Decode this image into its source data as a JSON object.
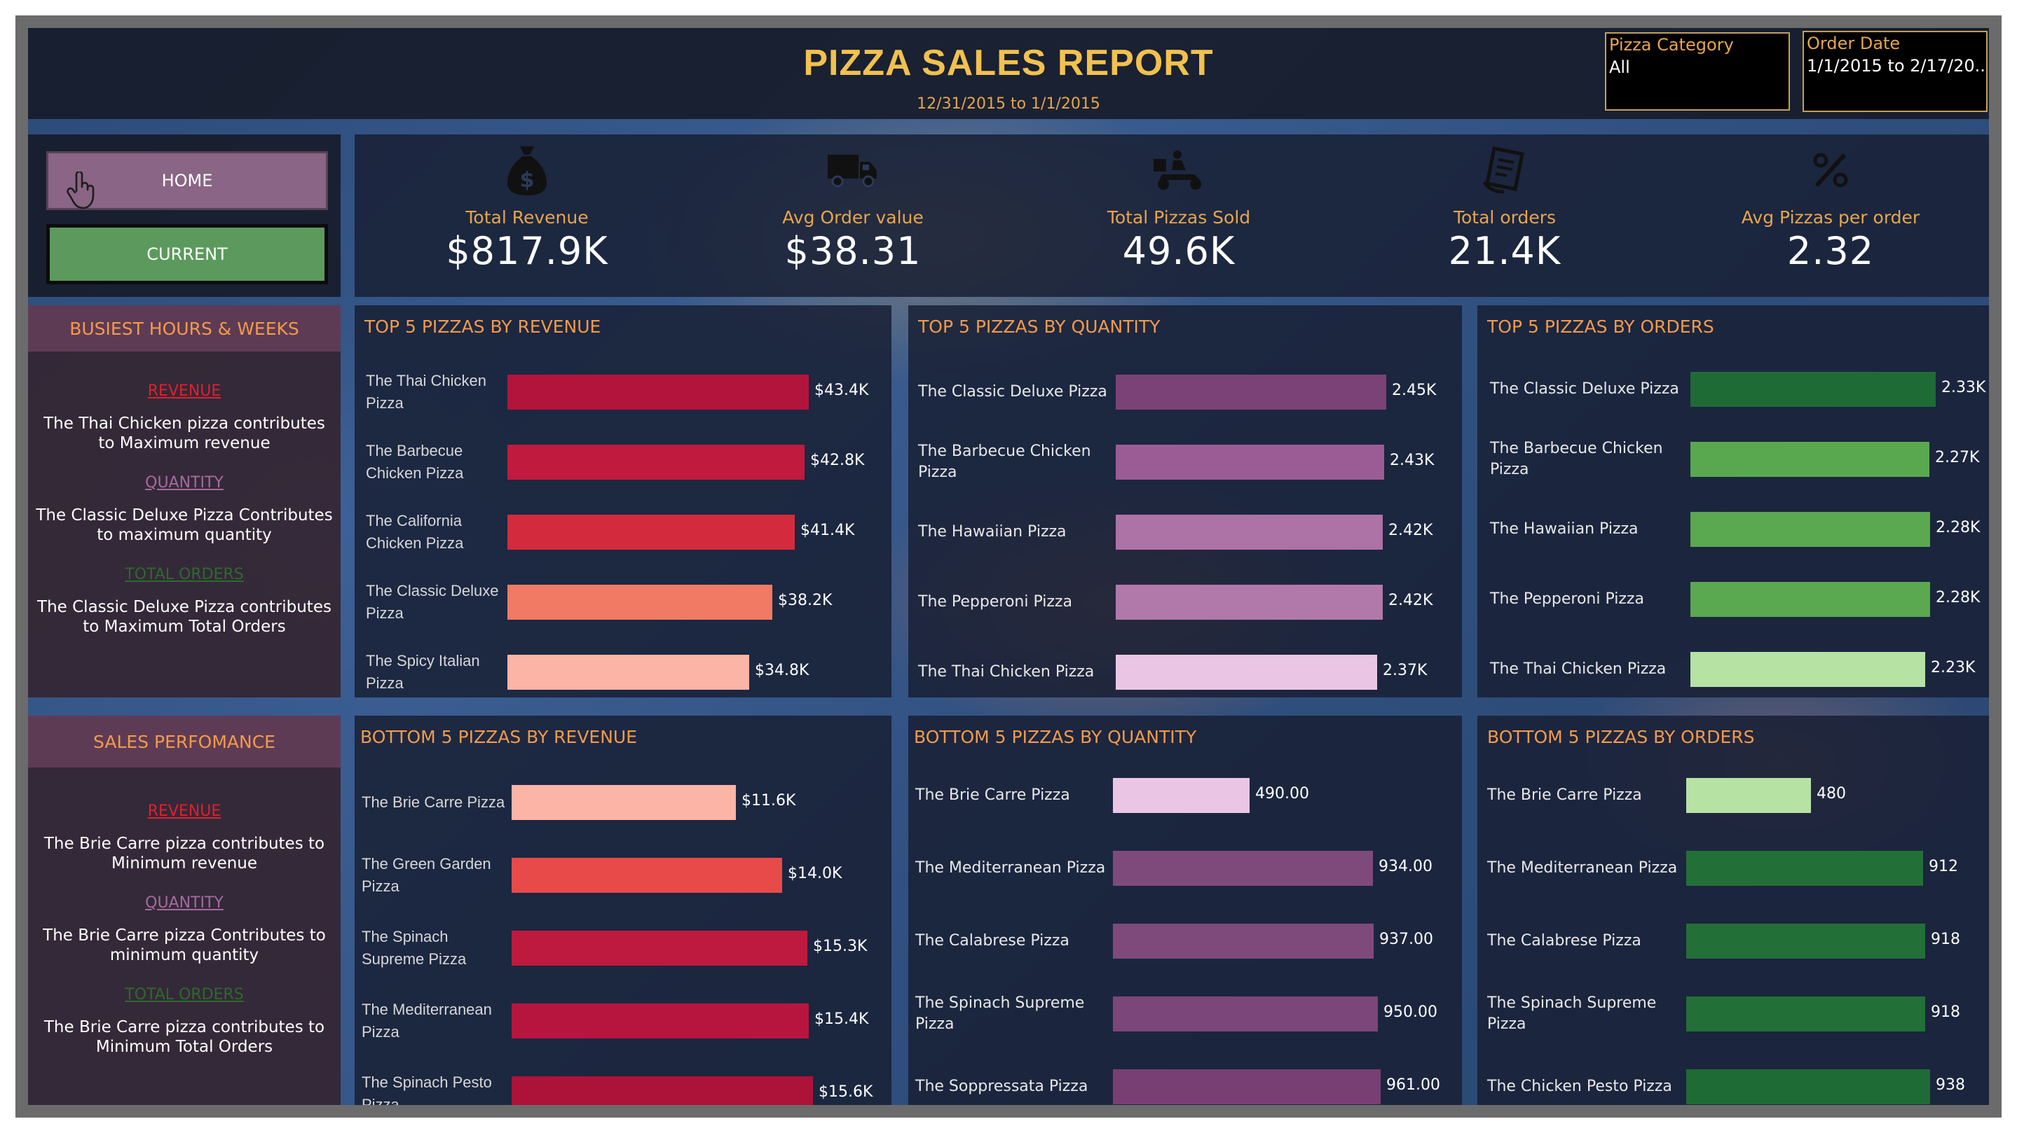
{
  "header": {
    "title": "PIZZA SALES REPORT",
    "subtitle": "12/31/2015 to 1/1/2015",
    "filter_category_label": "Pizza Category",
    "filter_category_value": "All",
    "filter_date_label": "Order Date",
    "filter_date_value": "1/1/2015 to 2/17/20.."
  },
  "nav": {
    "home_label": "HOME",
    "current_label": "CURRENT"
  },
  "kpis": [
    {
      "icon": "money-bag-icon",
      "label": "Total Revenue",
      "value": "$817.9K"
    },
    {
      "icon": "delivery-truck-icon",
      "label": "Avg Order value",
      "value": "$38.31"
    },
    {
      "icon": "delivery-scooter-icon",
      "label": "Total Pizzas Sold",
      "value": "49.6K"
    },
    {
      "icon": "receipt-icon",
      "label": "Total orders",
      "value": "21.4K"
    },
    {
      "icon": "percent-icon",
      "label": "Avg Pizzas per order",
      "value": "2.32"
    }
  ],
  "busiest": {
    "title": "BUSIEST HOURS & WEEKS",
    "items": [
      {
        "tag": "REVENUE",
        "text": "The Thai Chicken pizza contributes to Maximum revenue"
      },
      {
        "tag": "QUANTITY",
        "text": "The Classic Deluxe Pizza Contributes to maximum quantity"
      },
      {
        "tag": "TOTAL ORDERS",
        "text": "The Classic Deluxe Pizza contributes to Maximum Total Orders"
      }
    ]
  },
  "performance": {
    "title": "SALES PERFOMANCE",
    "items": [
      {
        "tag": "REVENUE",
        "text": "The Brie Carre pizza contributes to Minimum revenue"
      },
      {
        "tag": "QUANTITY",
        "text": "The Brie Carre pizza  Contributes to minimum quantity"
      },
      {
        "tag": "TOTAL ORDERS",
        "text": "The Brie Carre pizza  contributes to Minimum Total Orders"
      }
    ]
  },
  "colors": {
    "tag_revenue": "#e0202e",
    "tag_quantity": "#a66aa0",
    "tag_orders": "#2c6a2c"
  },
  "chart_data": [
    {
      "type": "bar",
      "title": "TOP 5 PIZZAS BY REVENUE",
      "categories": [
        "The Thai Chicken Pizza",
        "The Barbecue Chicken Pizza",
        "The California Chicken Pizza",
        "The Classic Deluxe Pizza",
        "The Spicy Italian Pizza"
      ],
      "values": [
        43.4,
        42.8,
        41.4,
        38.2,
        34.8
      ],
      "value_labels": [
        "$43.4K",
        "$42.8K",
        "$41.4K",
        "$38.2K",
        "$34.8K"
      ],
      "colors": [
        "#b3143c",
        "#c11a3f",
        "#d32b3d",
        "#f07a64",
        "#fbb4a6"
      ]
    },
    {
      "type": "bar",
      "title": "TOP 5 PIZZAS BY QUANTITY",
      "categories": [
        "The Classic Deluxe Pizza",
        "The Barbecue Chicken Pizza",
        "The Hawaiian Pizza",
        "The Pepperoni Pizza",
        "The Thai Chicken Pizza"
      ],
      "values": [
        2.45,
        2.43,
        2.42,
        2.42,
        2.37
      ],
      "value_labels": [
        "2.45K",
        "2.43K",
        "2.42K",
        "2.42K",
        "2.37K"
      ],
      "colors": [
        "#7a4276",
        "#9b5c95",
        "#ad72a6",
        "#b179a9",
        "#ebc6e4"
      ]
    },
    {
      "type": "bar",
      "title": "TOP 5 PIZZAS BY ORDERS",
      "categories": [
        "The Classic Deluxe Pizza",
        "The Barbecue Chicken Pizza",
        "The Hawaiian Pizza",
        "The Pepperoni Pizza",
        "The Thai Chicken Pizza"
      ],
      "values": [
        2.33,
        2.27,
        2.28,
        2.28,
        2.23
      ],
      "value_labels": [
        "2.33K",
        "2.27K",
        "2.28K",
        "2.28K",
        "2.23K"
      ],
      "colors": [
        "#1f6b36",
        "#59a84f",
        "#5aa850",
        "#5aa850",
        "#b6e2a4"
      ]
    },
    {
      "type": "bar",
      "title": "BOTTOM 5 PIZZAS BY REVENUE",
      "categories": [
        "The Brie Carre Pizza",
        "The Green Garden Pizza",
        "The Spinach Supreme Pizza",
        "The Mediterranean Pizza",
        "The Spinach Pesto Pizza"
      ],
      "values": [
        11.6,
        14.0,
        15.3,
        15.4,
        15.6
      ],
      "value_labels": [
        "$11.6K",
        "$14.0K",
        "$15.3K",
        "$15.4K",
        "$15.6K"
      ],
      "colors": [
        "#fbb4a6",
        "#e84a4a",
        "#be1a40",
        "#b8153e",
        "#ad1238"
      ]
    },
    {
      "type": "bar",
      "title": "BOTTOM 5 PIZZAS BY QUANTITY",
      "categories": [
        "The Brie Carre Pizza",
        "The Mediterranean Pizza",
        "The Calabrese Pizza",
        "The Spinach Supreme Pizza",
        "The Soppressata Pizza"
      ],
      "values": [
        490,
        934,
        937,
        950,
        961
      ],
      "value_labels": [
        "490.00",
        "934.00",
        "937.00",
        "950.00",
        "961.00"
      ],
      "colors": [
        "#ebc6e4",
        "#7e4a7c",
        "#7e4a7c",
        "#7b4679",
        "#773f74"
      ]
    },
    {
      "type": "bar",
      "title": "BOTTOM 5 PIZZAS BY ORDERS",
      "categories": [
        "The Brie Carre Pizza",
        "The Mediterranean Pizza",
        "The Calabrese Pizza",
        "The Spinach Supreme Pizza",
        "The Chicken Pesto Pizza"
      ],
      "values": [
        480,
        912,
        918,
        918,
        938
      ],
      "value_labels": [
        "480",
        "912",
        "918",
        "918",
        "938"
      ],
      "colors": [
        "#b6e2a4",
        "#236f38",
        "#236f38",
        "#236f38",
        "#1f6b36"
      ]
    }
  ]
}
